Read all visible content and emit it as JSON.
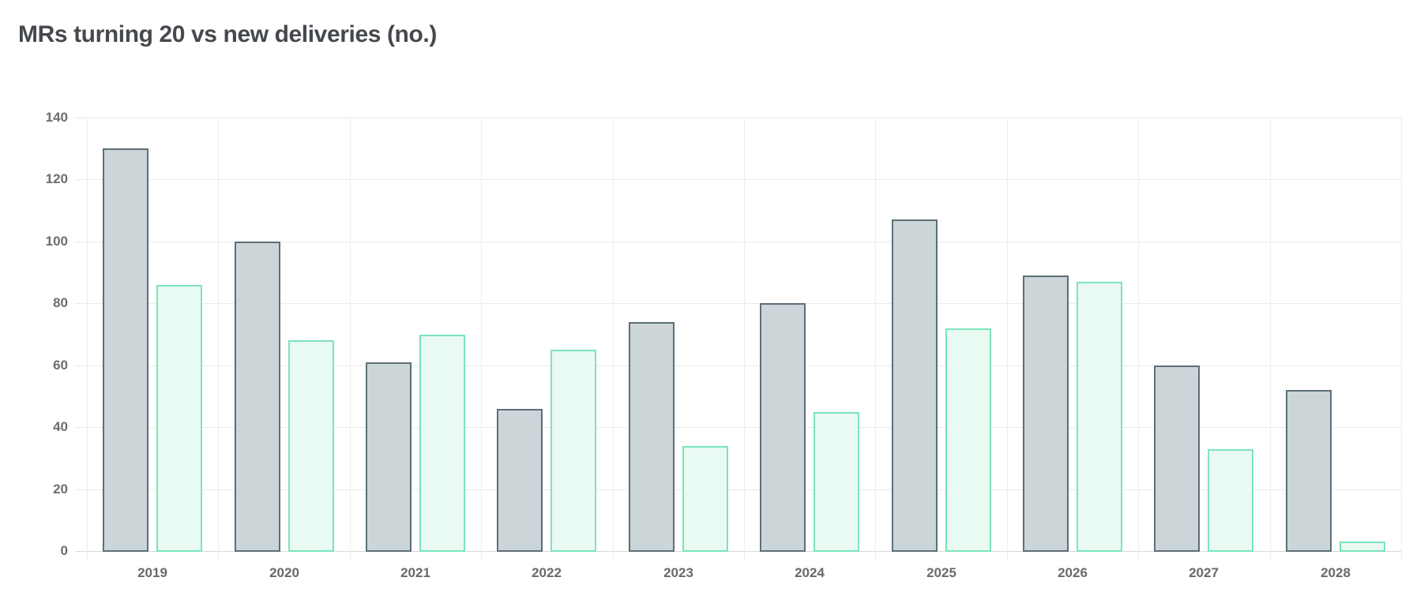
{
  "chart_data": {
    "type": "bar",
    "title": "MRs turning 20 vs new deliveries (no.)",
    "categories": [
      "2019",
      "2020",
      "2021",
      "2022",
      "2023",
      "2024",
      "2025",
      "2026",
      "2027",
      "2028"
    ],
    "series": [
      {
        "key": "mrs-turning-20",
        "name": "MRs turning 20",
        "fill": "#ccd6d9",
        "border": "#5d6e77",
        "values": [
          130,
          100,
          61,
          46,
          74,
          80,
          107,
          89,
          60,
          52
        ]
      },
      {
        "key": "new-deliveries",
        "name": "New deliveries",
        "fill": "#e9faf3",
        "border": "#7be4bd",
        "values": [
          86,
          68,
          70,
          65,
          34,
          45,
          72,
          87,
          33,
          3
        ]
      }
    ],
    "xlabel": "",
    "ylabel": "",
    "ylim": [
      0,
      140
    ],
    "y_ticks": [
      0,
      20,
      40,
      60,
      80,
      100,
      120,
      140
    ],
    "grid": true,
    "legend": "none",
    "colors": {
      "title_text": "#45494e",
      "axis_text": "#6d6d6d",
      "gridline": "#eaeaea",
      "background": "#ffffff"
    }
  }
}
